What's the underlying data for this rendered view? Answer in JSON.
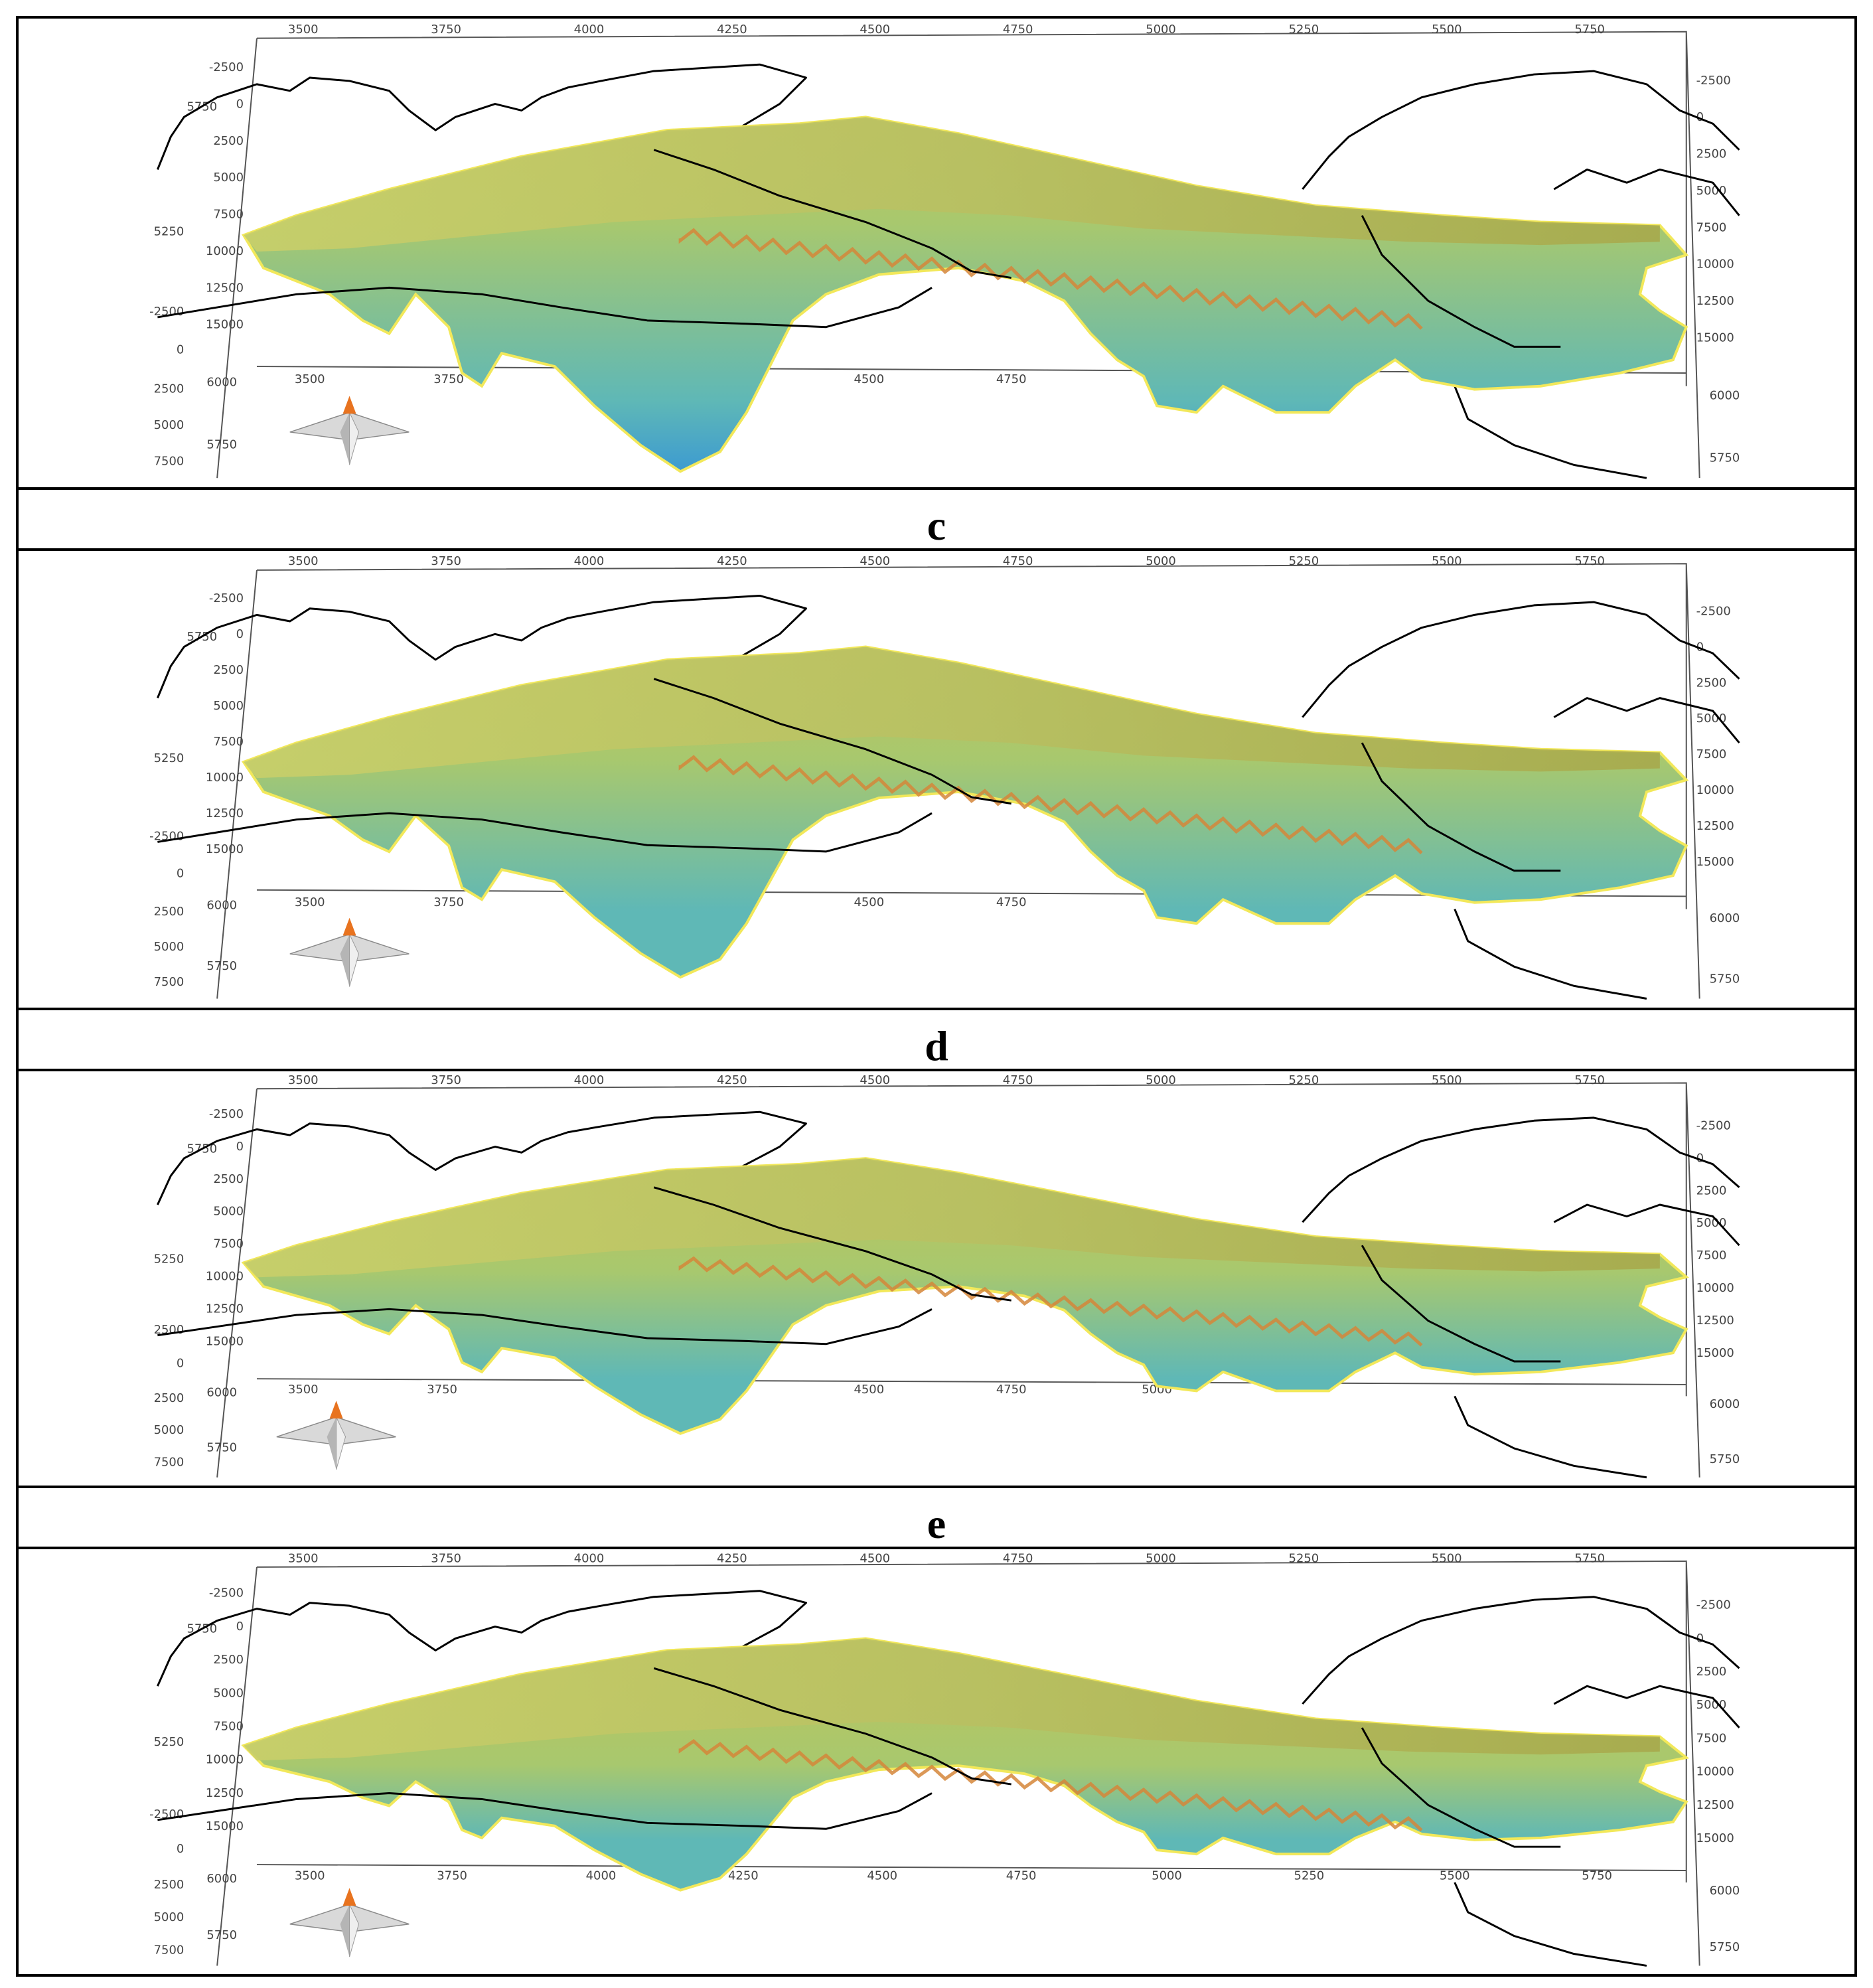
{
  "figure": {
    "captions": [
      "c",
      "d",
      "e"
    ],
    "colors": {
      "surface_top": "#bfc35a",
      "surface_mid": "#a8c86e",
      "surface_deep": "#5fb8b6",
      "surface_deepest": "#3d9bd1",
      "rim": "#f2e85a",
      "ridge": "#d5863a",
      "coastline": "#000000",
      "axis_frame": "#555555"
    },
    "compass_icon": "north-arrow-compass-icon"
  },
  "axes": {
    "top_x_ticks": [
      "3500",
      "3750",
      "4000",
      "4250",
      "4500",
      "4750",
      "5000",
      "5250",
      "5500",
      "5750"
    ],
    "bottom_x_ticks_short": [
      "3500",
      "3750",
      "4500",
      "4750"
    ],
    "bottom_x_ticks_full": [
      "3500",
      "3750",
      "4000",
      "4250",
      "4500",
      "4750",
      "5000",
      "5250",
      "5500",
      "5750"
    ],
    "bottom_x_ticks_e": [
      "3500",
      "3750",
      "4500",
      "4750",
      "5000"
    ],
    "left_depth_ticks": [
      "-2500",
      "0",
      "2500",
      "5000",
      "7500",
      "10000",
      "12500",
      "15000"
    ],
    "left_outer_ticks": [
      "5250",
      "-2500",
      "0",
      "2500",
      "5000",
      "7500"
    ],
    "left_outer_ticks_e": [
      "5250",
      "2500",
      "0",
      "2500",
      "5000",
      "7500"
    ],
    "left_inner_ticks": [
      "6000",
      "5750"
    ],
    "right_depth_ticks": [
      "-2500",
      "0",
      "2500",
      "5000",
      "7500",
      "10000",
      "12500",
      "15000"
    ],
    "right_outer_ticks": [
      "6000",
      "5750"
    ],
    "top_left_corner_label": "5750"
  },
  "panels": [
    {
      "id": "panel-b",
      "depth_scale": 1.0
    },
    {
      "id": "panel-c",
      "depth_scale": 0.9
    },
    {
      "id": "panel-d",
      "depth_scale": 0.72
    },
    {
      "id": "panel-e",
      "depth_scale": 0.5
    }
  ]
}
